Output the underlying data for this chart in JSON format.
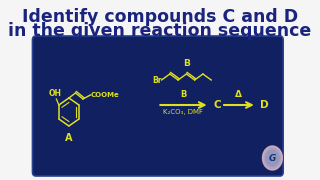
{
  "title_line1": "Identify compounds C and D",
  "title_line2": "in the given reaction sequence",
  "title_color": "#1a237e",
  "title_fontsize": 12.5,
  "bg_color": "#f5f5f5",
  "panel_color": "#102060",
  "panel_edge": "#2a4090",
  "yellow": "#e0e020",
  "yellow2": "#d8d818",
  "reagent_below": "K₂CO₃, DMF",
  "heat_symbol": "Δ",
  "logo_outer": "#d4b8cc",
  "logo_inner": "#9098c0",
  "logo_text_color": "#1a3070"
}
